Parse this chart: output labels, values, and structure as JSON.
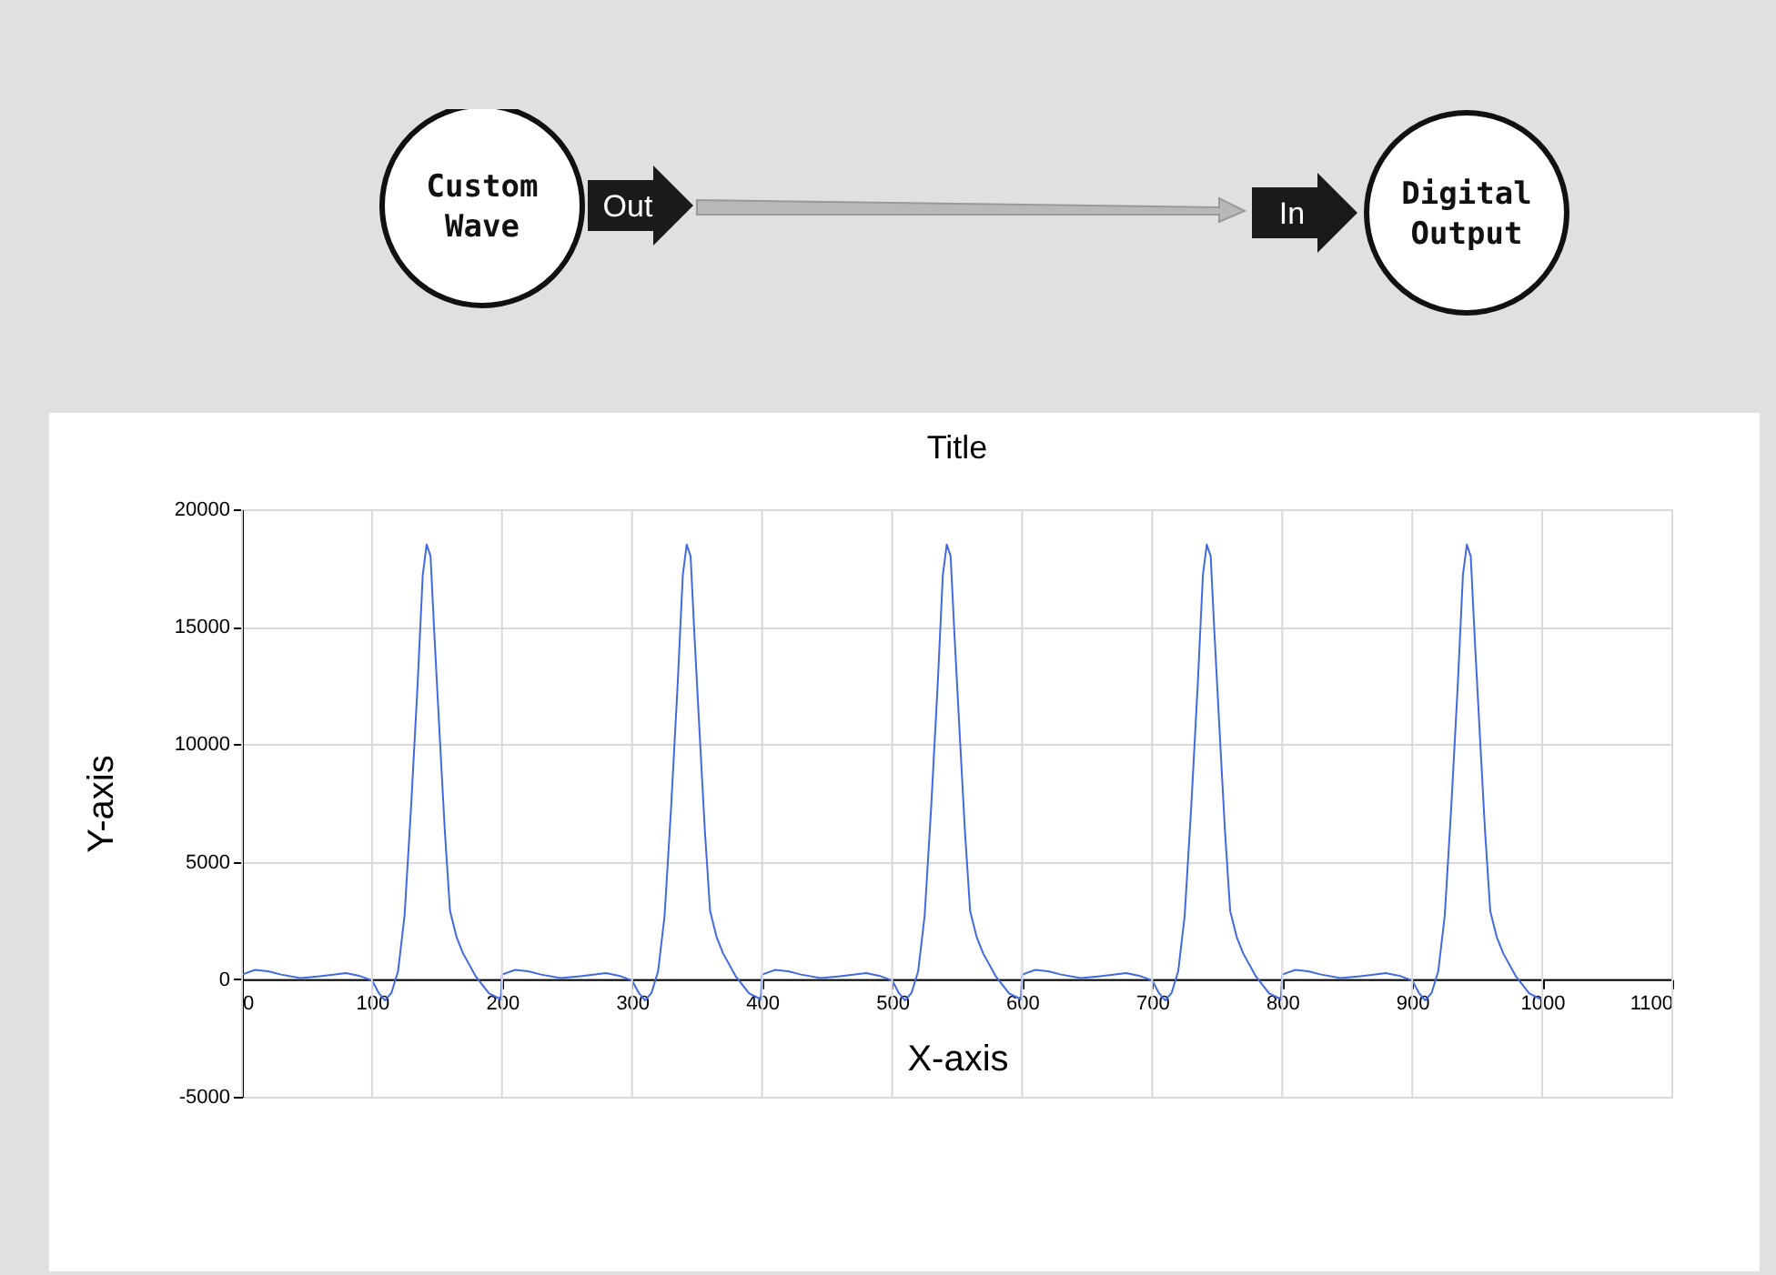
{
  "chart_data": {
    "type": "line",
    "title": "Title",
    "xlabel": "X-axis",
    "ylabel": "Y-axis",
    "annotations": [
      "Custom Wave",
      "Out",
      "In",
      "Digital Output"
    ],
    "x": [
      0,
      10,
      20,
      30,
      45,
      60,
      80,
      90,
      100,
      105,
      110,
      115,
      120,
      125,
      130,
      135,
      139,
      142,
      145,
      148,
      152,
      156,
      160,
      165,
      170,
      180,
      190,
      199,
      200,
      210,
      220,
      230,
      245,
      260,
      280,
      290,
      300,
      305,
      310,
      315,
      320,
      325,
      330,
      335,
      339,
      342,
      345,
      348,
      352,
      356,
      360,
      365,
      370,
      380,
      390,
      399,
      400,
      410,
      420,
      430,
      445,
      460,
      480,
      490,
      500,
      505,
      510,
      515,
      520,
      525,
      530,
      535,
      539,
      542,
      545,
      548,
      552,
      556,
      560,
      565,
      570,
      580,
      590,
      599,
      600,
      610,
      620,
      630,
      645,
      660,
      680,
      690,
      700,
      705,
      710,
      715,
      720,
      725,
      730,
      735,
      739,
      742,
      745,
      748,
      752,
      756,
      760,
      765,
      770,
      780,
      790,
      799,
      800,
      810,
      820,
      830,
      845,
      860,
      880,
      890,
      900,
      905,
      910,
      915,
      920,
      925,
      930,
      935,
      939,
      942,
      945,
      948,
      952,
      956,
      960,
      965,
      970,
      980,
      990,
      999
    ],
    "series": [
      {
        "color": "#4169e1",
        "values": [
          200,
          400,
          340,
          200,
          50,
          130,
          260,
          150,
          -50,
          -570,
          -900,
          -570,
          340,
          2700,
          7300,
          12500,
          17200,
          18500,
          18000,
          14600,
          10400,
          6300,
          2900,
          1800,
          1100,
          100,
          -600,
          -850,
          200,
          400,
          340,
          200,
          50,
          130,
          260,
          150,
          -50,
          -570,
          -900,
          -570,
          340,
          2700,
          7300,
          12500,
          17200,
          18500,
          18000,
          14600,
          10400,
          6300,
          2900,
          1800,
          1100,
          100,
          -600,
          -850,
          200,
          400,
          340,
          200,
          50,
          130,
          260,
          150,
          -50,
          -570,
          -900,
          -570,
          340,
          2700,
          7300,
          12500,
          17200,
          18500,
          18000,
          14600,
          10400,
          6300,
          2900,
          1800,
          1100,
          100,
          -600,
          -850,
          200,
          400,
          340,
          200,
          50,
          130,
          260,
          150,
          -50,
          -570,
          -900,
          -570,
          340,
          2700,
          7300,
          12500,
          17200,
          18500,
          18000,
          14600,
          10400,
          6300,
          2900,
          1800,
          1100,
          100,
          -600,
          -850,
          200,
          400,
          340,
          200,
          50,
          130,
          260,
          150,
          -50,
          -570,
          -900,
          -570,
          340,
          2700,
          7300,
          12500,
          17200,
          18500,
          18000,
          14600,
          10400,
          6300,
          2900,
          1800,
          1100,
          100,
          -600,
          -850
        ]
      }
    ],
    "xlim": [
      0,
      1100
    ],
    "xticks": [
      0,
      100,
      200,
      300,
      400,
      500,
      600,
      700,
      800,
      900,
      1000,
      1100
    ],
    "ylim": [
      -5000,
      20000
    ],
    "yticks": [
      -5000,
      0,
      5000,
      10000,
      15000,
      20000
    ],
    "grid": true,
    "marker": "none",
    "line_style": "solid"
  }
}
